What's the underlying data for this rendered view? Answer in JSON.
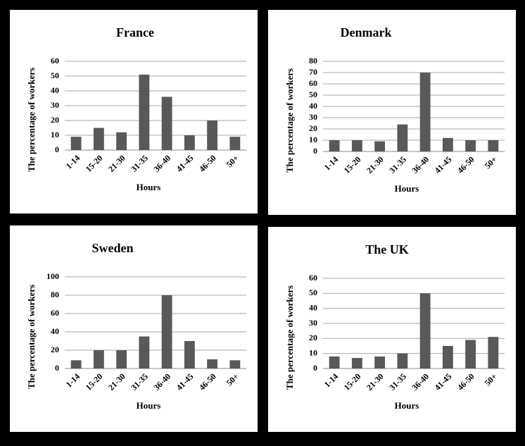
{
  "chart_data": [
    {
      "type": "bar",
      "title": "France",
      "x_label": "Hours",
      "y_label": "The percentage of workers",
      "categories": [
        "1-14",
        "15-20",
        "21-30",
        "31-35",
        "36-40",
        "41-45",
        "46-50",
        "50+"
      ],
      "values": [
        9,
        15,
        12,
        51,
        36,
        10,
        20,
        9
      ],
      "color": "#595959",
      "ylim": [
        0,
        60
      ],
      "yticks": [
        0,
        10,
        20,
        30,
        40,
        50,
        60
      ],
      "grid": true
    },
    {
      "type": "bar",
      "title": "Denmark",
      "x_label": "Hours",
      "y_label": "The percentage of workers",
      "categories": [
        "1-14",
        "15-20",
        "21-30",
        "31-35",
        "36-40",
        "41-45",
        "46-50",
        "50+"
      ],
      "values": [
        10,
        10,
        9,
        24,
        70,
        12,
        10,
        10
      ],
      "color": "#595959",
      "ylim": [
        0,
        80
      ],
      "yticks": [
        0,
        10,
        20,
        30,
        40,
        50,
        60,
        70,
        80
      ],
      "grid": true
    },
    {
      "type": "bar",
      "title": "Sweden",
      "x_label": "Hours",
      "y_label": "The percentage of workers",
      "categories": [
        "1-14",
        "15-20",
        "21-30",
        "31-35",
        "36-40",
        "41-45",
        "46-50",
        "50+"
      ],
      "values": [
        9,
        20,
        20,
        35,
        80,
        30,
        10,
        9
      ],
      "color": "#595959",
      "ylim": [
        0,
        100
      ],
      "yticks": [
        0,
        20,
        40,
        60,
        80,
        100
      ],
      "grid": true
    },
    {
      "type": "bar",
      "title": "The UK",
      "x_label": "Hours",
      "y_label": "The percentage of workers",
      "categories": [
        "1-14",
        "15-20",
        "21-30",
        "31-35",
        "36-40",
        "41-45",
        "46-50",
        "50+"
      ],
      "values": [
        8,
        7,
        8,
        10,
        50,
        15,
        19,
        21
      ],
      "color": "#595959",
      "ylim": [
        0,
        60
      ],
      "yticks": [
        0,
        10,
        20,
        30,
        40,
        50,
        60
      ],
      "grid": true
    }
  ]
}
